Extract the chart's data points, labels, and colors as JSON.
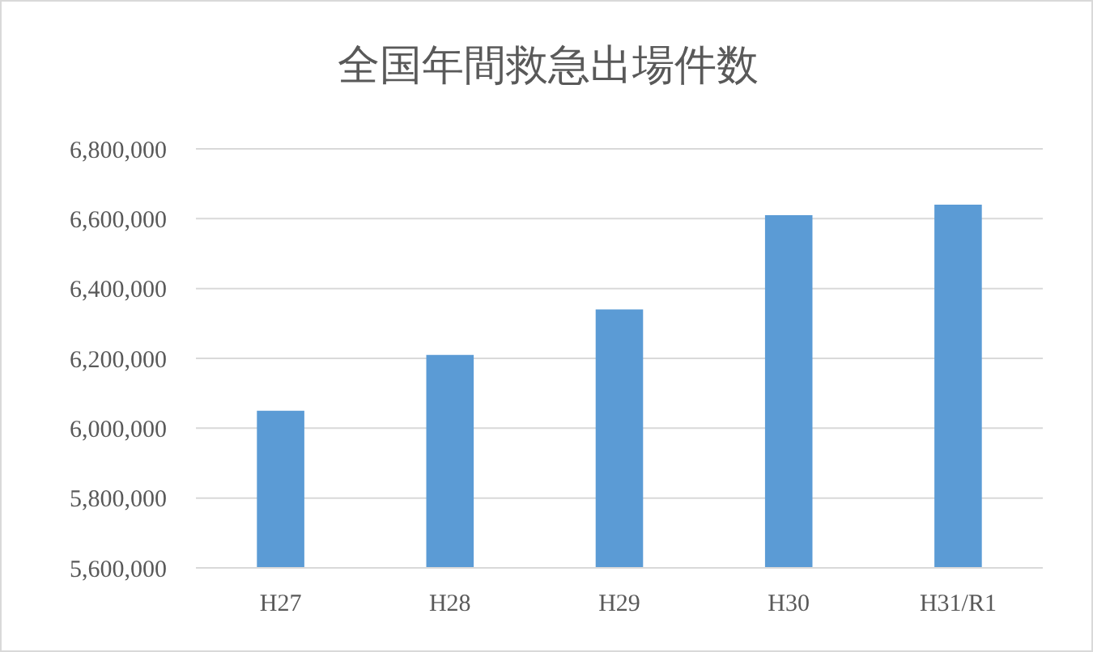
{
  "chart_data": {
    "type": "bar",
    "title": "全国年間救急出場件数",
    "categories": [
      "H27",
      "H28",
      "H29",
      "H30",
      "H31/R1"
    ],
    "values": [
      6050000,
      6210000,
      6340000,
      6610000,
      6640000
    ],
    "color": "#5b9bd5",
    "ylim": [
      5600000,
      6800000
    ],
    "yticks": [
      {
        "value": 5600000,
        "label": "5,600,000"
      },
      {
        "value": 5800000,
        "label": "5,800,000"
      },
      {
        "value": 6000000,
        "label": "6,000,000"
      },
      {
        "value": 6200000,
        "label": "6,200,000"
      },
      {
        "value": 6400000,
        "label": "6,400,000"
      },
      {
        "value": 6600000,
        "label": "6,600,000"
      },
      {
        "value": 6800000,
        "label": "6,800,000"
      }
    ],
    "grid": "y",
    "legend": false
  }
}
